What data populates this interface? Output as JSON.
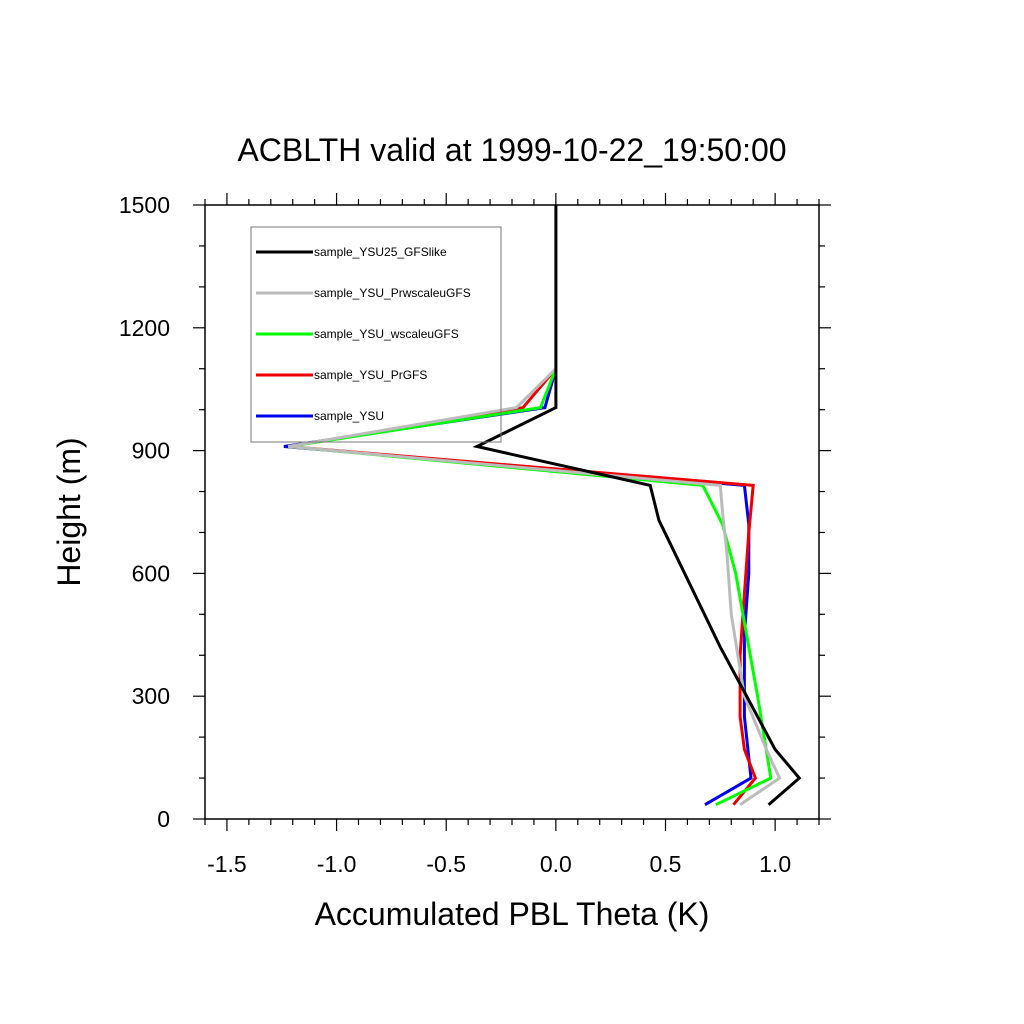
{
  "chart_data": {
    "type": "line",
    "title": "ACBLTH valid at 1999-10-22_19:50:00",
    "xlabel": "Accumulated PBL Theta (K)",
    "ylabel": "Height (m)",
    "xlim": [
      -1.6,
      1.2
    ],
    "ylim": [
      0,
      1500
    ],
    "xticks": [
      -1.5,
      -1.0,
      -0.5,
      0.0,
      0.5,
      1.0
    ],
    "xtick_labels": [
      "-1.5",
      "-1.0",
      "-0.5",
      "0.0",
      "0.5",
      "1.0"
    ],
    "yticks": [
      0,
      300,
      600,
      900,
      1200,
      1500
    ],
    "ytick_labels": [
      "0",
      "300",
      "600",
      "900",
      "1200",
      "1500"
    ],
    "legend_position": "top-left",
    "series": [
      {
        "name": "sample_YSU25_GFSlike",
        "color": "#000000",
        "x": [
          0.97,
          1.11,
          1.0,
          0.93,
          0.85,
          0.75,
          0.47,
          0.43,
          -0.36,
          0.0,
          0.0,
          0.0,
          0.0
        ],
        "y": [
          35,
          100,
          170,
          240,
          320,
          420,
          730,
          815,
          910,
          1005,
          1100,
          1250,
          1500
        ]
      },
      {
        "name": "sample_YSU_PrwscaleuGFS",
        "color": "#bbbbbb",
        "x": [
          0.84,
          1.02,
          0.96,
          0.86,
          0.8,
          0.78,
          0.76,
          0.75,
          -1.22,
          -0.18,
          0.0
        ],
        "y": [
          35,
          100,
          170,
          300,
          500,
          650,
          750,
          815,
          910,
          1005,
          1100
        ]
      },
      {
        "name": "sample_YSU_wscaleuGFS",
        "color": "#00ff00",
        "x": [
          0.73,
          0.98,
          0.95,
          0.92,
          0.87,
          0.82,
          0.76,
          0.67,
          -1.22,
          -0.07,
          0.0
        ],
        "y": [
          35,
          100,
          200,
          300,
          450,
          600,
          720,
          815,
          910,
          1005,
          1100
        ]
      },
      {
        "name": "sample_YSU_PrGFS",
        "color": "#ee0000",
        "x": [
          0.81,
          0.91,
          0.86,
          0.84,
          0.84,
          0.86,
          0.88,
          0.9,
          -1.22,
          -0.15,
          0.0
        ],
        "y": [
          35,
          100,
          170,
          250,
          400,
          550,
          700,
          815,
          910,
          1005,
          1100
        ]
      },
      {
        "name": "sample_YSU",
        "color": "#0000ee",
        "x": [
          0.68,
          0.89,
          0.86,
          0.86,
          0.88,
          0.88,
          0.86,
          -1.24,
          -0.05,
          0.0
        ],
        "y": [
          35,
          100,
          250,
          450,
          600,
          720,
          815,
          910,
          1005,
          1100
        ]
      }
    ]
  }
}
